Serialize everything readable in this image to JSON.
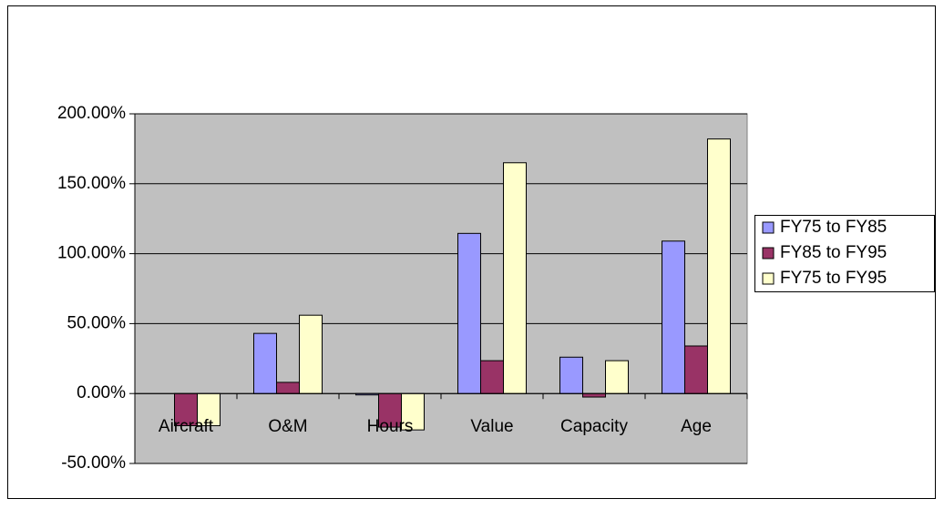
{
  "chart_data": {
    "type": "bar",
    "categories": [
      "Aircraft",
      "O&M",
      "Hours",
      "Value",
      "Capacity",
      "Age"
    ],
    "series": [
      {
        "name": "FY75 to FY85",
        "color": "#9999ff",
        "values": [
          0,
          43,
          -1,
          114.5,
          26,
          109
        ]
      },
      {
        "name": "FY85 to FY95",
        "color": "#993366",
        "values": [
          -23,
          8,
          -24,
          23.5,
          -2.5,
          34
        ]
      },
      {
        "name": "FY75 to FY95",
        "color": "#ffffcc",
        "values": [
          -23,
          56,
          -26,
          165,
          23.5,
          182
        ]
      }
    ],
    "ylim": [
      -50,
      200
    ],
    "yticks": [
      {
        "value": -50,
        "label": "-50.00%"
      },
      {
        "value": 0,
        "label": "0.00%"
      },
      {
        "value": 50,
        "label": "50.00%"
      },
      {
        "value": 100,
        "label": "100.00%"
      },
      {
        "value": 150,
        "label": "150.00%"
      },
      {
        "value": 200,
        "label": "200.00%"
      }
    ],
    "grid": true,
    "legend": "right"
  }
}
